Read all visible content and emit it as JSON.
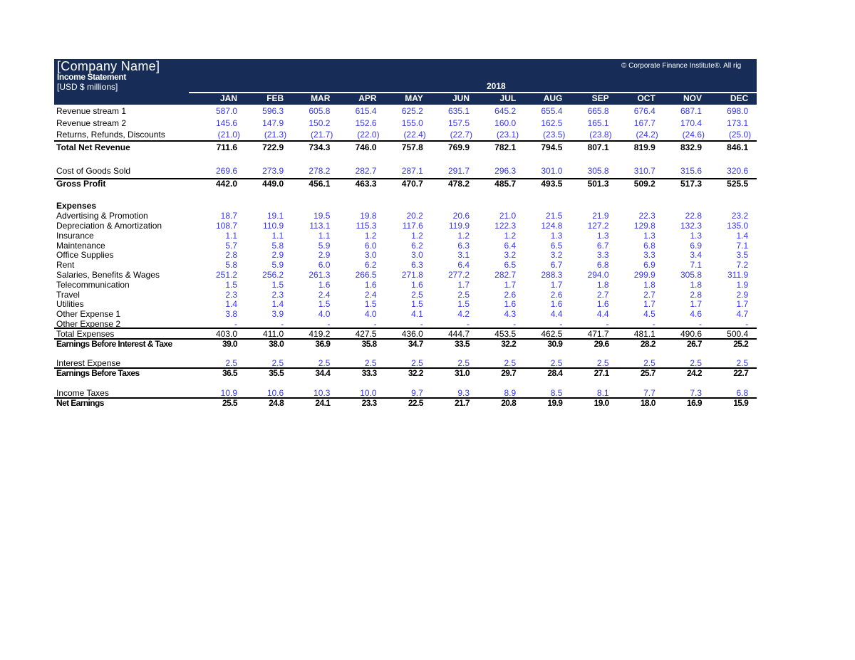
{
  "header": {
    "company": "[Company Name]",
    "statement": "Income Statement",
    "units": "[USD $ millions]",
    "copyright": "© Corporate Finance Institute®. All rig",
    "year": "2018",
    "months": [
      "JAN",
      "FEB",
      "MAR",
      "APR",
      "MAY",
      "JUN",
      "JUL",
      "AUG",
      "SEP",
      "OCT",
      "NOV",
      "DEC"
    ],
    "bg_color": "#172d57"
  },
  "colors": {
    "input": "#3535f0",
    "formula": "#000000"
  },
  "rows": [
    {
      "label": "Revenue stream 1",
      "style": "input",
      "values": [
        "587.0",
        "596.3",
        "605.8",
        "615.4",
        "625.2",
        "635.1",
        "645.2",
        "655.4",
        "665.8",
        "676.4",
        "687.1",
        "698.0"
      ]
    },
    {
      "label": "Revenue stream 2",
      "style": "input",
      "values": [
        "145.6",
        "147.9",
        "150.2",
        "152.6",
        "155.0",
        "157.5",
        "160.0",
        "162.5",
        "165.1",
        "167.7",
        "170.4",
        "173.1"
      ]
    },
    {
      "label": "Returns, Refunds, Discounts",
      "style": "input",
      "values": [
        "(21.0)",
        "(21.3)",
        "(21.7)",
        "(22.0)",
        "(22.4)",
        "(22.7)",
        "(23.1)",
        "(23.5)",
        "(23.8)",
        "(24.2)",
        "(24.6)",
        "(25.0)"
      ]
    },
    {
      "label": "Total Net Revenue",
      "style": "total",
      "values": [
        "711.6",
        "722.9",
        "734.3",
        "746.0",
        "757.8",
        "769.9",
        "782.1",
        "794.5",
        "807.1",
        "819.9",
        "832.9",
        "846.1"
      ]
    },
    {
      "label": "Cost of Goods Sold",
      "style": "input",
      "values": [
        "269.6",
        "273.9",
        "278.2",
        "282.7",
        "287.1",
        "291.7",
        "296.3",
        "301.0",
        "305.8",
        "310.7",
        "315.6",
        "320.6"
      ]
    },
    {
      "label": "Gross Profit",
      "style": "total",
      "values": [
        "442.0",
        "449.0",
        "456.1",
        "463.3",
        "470.7",
        "478.2",
        "485.7",
        "493.5",
        "501.3",
        "509.2",
        "517.3",
        "525.5"
      ]
    },
    {
      "label": "Expenses",
      "style": "heading",
      "values": []
    },
    {
      "label": "Advertising & Promotion",
      "style": "input",
      "values": [
        "18.7",
        "19.1",
        "19.5",
        "19.8",
        "20.2",
        "20.6",
        "21.0",
        "21.5",
        "21.9",
        "22.3",
        "22.8",
        "23.2"
      ]
    },
    {
      "label": "Depreciation & Amortization",
      "style": "input",
      "values": [
        "108.7",
        "110.9",
        "113.1",
        "115.3",
        "117.6",
        "119.9",
        "122.3",
        "124.8",
        "127.2",
        "129.8",
        "132.3",
        "135.0"
      ]
    },
    {
      "label": "Insurance",
      "style": "input",
      "values": [
        "1.1",
        "1.1",
        "1.1",
        "1.2",
        "1.2",
        "1.2",
        "1.2",
        "1.3",
        "1.3",
        "1.3",
        "1.3",
        "1.4"
      ]
    },
    {
      "label": "Maintenance",
      "style": "input",
      "values": [
        "5.7",
        "5.8",
        "5.9",
        "6.0",
        "6.2",
        "6.3",
        "6.4",
        "6.5",
        "6.7",
        "6.8",
        "6.9",
        "7.1"
      ]
    },
    {
      "label": "Office Supplies",
      "style": "input",
      "values": [
        "2.8",
        "2.9",
        "2.9",
        "3.0",
        "3.0",
        "3.1",
        "3.2",
        "3.2",
        "3.3",
        "3.3",
        "3.4",
        "3.5"
      ]
    },
    {
      "label": "Rent",
      "style": "input",
      "values": [
        "5.8",
        "5.9",
        "6.0",
        "6.2",
        "6.3",
        "6.4",
        "6.5",
        "6.7",
        "6.8",
        "6.9",
        "7.1",
        "7.2"
      ]
    },
    {
      "label": "Salaries, Benefits & Wages",
      "style": "input",
      "values": [
        "251.2",
        "256.2",
        "261.3",
        "266.5",
        "271.8",
        "277.2",
        "282.7",
        "288.3",
        "294.0",
        "299.9",
        "305.8",
        "311.9"
      ]
    },
    {
      "label": "Telecommunication",
      "style": "input",
      "values": [
        "1.5",
        "1.5",
        "1.6",
        "1.6",
        "1.6",
        "1.7",
        "1.7",
        "1.7",
        "1.8",
        "1.8",
        "1.8",
        "1.9"
      ]
    },
    {
      "label": "Travel",
      "style": "input",
      "values": [
        "2.3",
        "2.3",
        "2.4",
        "2.4",
        "2.5",
        "2.5",
        "2.6",
        "2.6",
        "2.7",
        "2.7",
        "2.8",
        "2.9"
      ]
    },
    {
      "label": "Utilities",
      "style": "input",
      "values": [
        "1.4",
        "1.4",
        "1.5",
        "1.5",
        "1.5",
        "1.5",
        "1.6",
        "1.6",
        "1.6",
        "1.7",
        "1.7",
        "1.7"
      ]
    },
    {
      "label": "Other Expense 1",
      "style": "input",
      "values": [
        "3.8",
        "3.9",
        "4.0",
        "4.0",
        "4.1",
        "4.2",
        "4.3",
        "4.4",
        "4.4",
        "4.5",
        "4.6",
        "4.7"
      ]
    },
    {
      "label": "Other Expense 2",
      "style": "input",
      "values": [
        "-",
        "-",
        "-",
        "-",
        "-",
        "-",
        "-",
        "-",
        "-",
        "-",
        "-",
        "-"
      ]
    },
    {
      "label": "Total Expenses",
      "style": "plain",
      "values": [
        "403.0",
        "411.0",
        "419.2",
        "427.5",
        "436.0",
        "444.7",
        "453.5",
        "462.5",
        "471.7",
        "481.1",
        "490.6",
        "500.4"
      ]
    },
    {
      "label": "Earnings Before Interest & Taxe",
      "style": "total",
      "values": [
        "39.0",
        "38.0",
        "36.9",
        "35.8",
        "34.7",
        "33.5",
        "32.2",
        "30.9",
        "29.6",
        "28.2",
        "26.7",
        "25.2"
      ]
    },
    {
      "label": "Interest Expense",
      "style": "input",
      "values": [
        "2.5",
        "2.5",
        "2.5",
        "2.5",
        "2.5",
        "2.5",
        "2.5",
        "2.5",
        "2.5",
        "2.5",
        "2.5",
        "2.5"
      ]
    },
    {
      "label": "Earnings Before Taxes",
      "style": "total",
      "values": [
        "36.5",
        "35.5",
        "34.4",
        "33.3",
        "32.2",
        "31.0",
        "29.7",
        "28.4",
        "27.1",
        "25.7",
        "24.2",
        "22.7"
      ]
    },
    {
      "label": "Income Taxes",
      "style": "input",
      "values": [
        "10.9",
        "10.6",
        "10.3",
        "10.0",
        "9.7",
        "9.3",
        "8.9",
        "8.5",
        "8.1",
        "7.7",
        "7.3",
        "6.8"
      ]
    },
    {
      "label": "Net Earnings",
      "style": "total",
      "values": [
        "25.5",
        "24.8",
        "24.1",
        "23.3",
        "22.5",
        "21.7",
        "20.8",
        "19.9",
        "19.0",
        "18.0",
        "16.9",
        "15.9"
      ]
    }
  ]
}
